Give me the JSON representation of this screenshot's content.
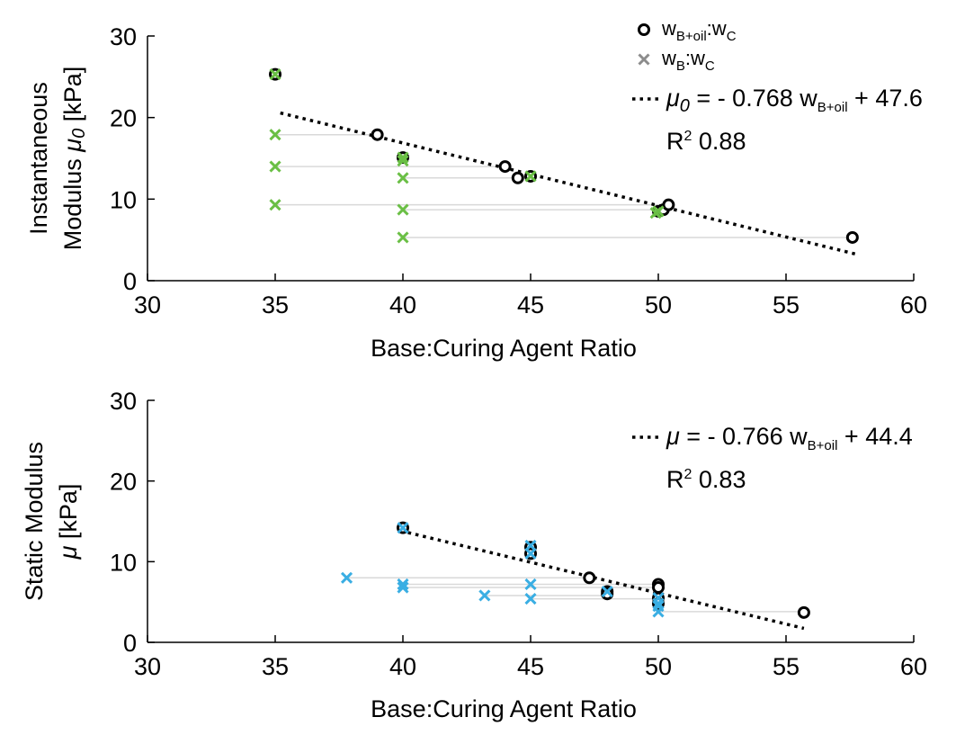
{
  "chart_data": [
    {
      "type": "scatter",
      "panel": "top",
      "xlabel": "Base:Curing Agent Ratio",
      "ylabel_line1": "Instantaneous",
      "ylabel_line2_prefix": "Modulus ",
      "ylabel_symbol": "μ",
      "ylabel_symbol_sub": "0",
      "ylabel_unit": " [kPa]",
      "xlim": [
        30,
        60
      ],
      "ylim": [
        0,
        30
      ],
      "xticks": [
        30,
        35,
        40,
        45,
        50,
        55,
        60
      ],
      "yticks": [
        0,
        10,
        20,
        30
      ],
      "accent_color": "#6abf45",
      "legend": [
        {
          "marker": "circle",
          "label_main": "w",
          "label_sub": "B+oil",
          "label_sep": ":",
          "label_main2": "w",
          "label_sub2": "C",
          "color": "#000000"
        },
        {
          "marker": "x",
          "label_main": "w",
          "label_sub": "B",
          "label_sep": ":",
          "label_main2": "w",
          "label_sub2": "C",
          "color": "#8c8c8c"
        }
      ],
      "fit": {
        "slope": -0.768,
        "intercept": 47.6,
        "x_range": [
          35.2,
          57.7
        ],
        "eq_symbol": "μ",
        "eq_symbol_sub": "0",
        "eq_text": " = - 0.768 ",
        "eq_var": "w",
        "eq_var_sub": "B+oil",
        "eq_const": " + 47.6",
        "r2_label": "R",
        "r2_sup": "2",
        "r2_value": "  0.88"
      },
      "series": [
        {
          "name": "wB+oil:wC",
          "marker": "circle",
          "points": [
            [
              35,
              25.3
            ],
            [
              39,
              17.9
            ],
            [
              40,
              15.1
            ],
            [
              44,
              14.0
            ],
            [
              44.5,
              12.6
            ],
            [
              45,
              12.8
            ],
            [
              50,
              8.5
            ],
            [
              50.2,
              8.7
            ],
            [
              50.4,
              9.3
            ],
            [
              57.6,
              5.3
            ]
          ]
        },
        {
          "name": "wB:wC",
          "marker": "x",
          "points": [
            [
              35,
              25.3
            ],
            [
              35,
              17.9
            ],
            [
              35,
              14.0
            ],
            [
              35,
              9.3
            ],
            [
              40,
              15.1
            ],
            [
              40,
              14.7
            ],
            [
              40,
              12.6
            ],
            [
              40,
              8.7
            ],
            [
              40,
              5.3
            ],
            [
              45,
              12.8
            ],
            [
              49.9,
              8.3
            ],
            [
              50,
              8.5
            ]
          ]
        }
      ],
      "connectors": [
        [
          [
            35,
            17.9
          ],
          [
            39,
            17.9
          ]
        ],
        [
          [
            35,
            14.0
          ],
          [
            44,
            14.0
          ]
        ],
        [
          [
            40,
            12.6
          ],
          [
            44.5,
            12.6
          ]
        ],
        [
          [
            35,
            9.3
          ],
          [
            50.4,
            9.3
          ]
        ],
        [
          [
            40,
            8.7
          ],
          [
            50.2,
            8.7
          ]
        ],
        [
          [
            40,
            5.3
          ],
          [
            57.6,
            5.3
          ]
        ]
      ]
    },
    {
      "type": "scatter",
      "panel": "bottom",
      "xlabel": "Base:Curing Agent Ratio",
      "ylabel_line1": "Static Modulus",
      "ylabel_line2_prefix": "",
      "ylabel_symbol": "μ",
      "ylabel_symbol_sub": "",
      "ylabel_unit": " [kPa]",
      "xlim": [
        30,
        60
      ],
      "ylim": [
        0,
        30
      ],
      "xticks": [
        30,
        35,
        40,
        45,
        50,
        55,
        60
      ],
      "yticks": [
        0,
        10,
        20,
        30
      ],
      "accent_color": "#3aaee3",
      "fit": {
        "slope": -0.766,
        "intercept": 44.4,
        "x_range": [
          40.2,
          55.7
        ],
        "eq_symbol": "μ",
        "eq_symbol_sub": "",
        "eq_text": " = - 0.766 ",
        "eq_var": "w",
        "eq_var_sub": "B+oil",
        "eq_const": " + 44.4",
        "r2_label": "R",
        "r2_sup": "2",
        "r2_value": "  0.83"
      },
      "series": [
        {
          "name": "wB+oil:wC",
          "marker": "circle",
          "points": [
            [
              40,
              14.2
            ],
            [
              45,
              11.8
            ],
            [
              45,
              11.0
            ],
            [
              47.3,
              8.0
            ],
            [
              48,
              6.3
            ],
            [
              48,
              6.0
            ],
            [
              50,
              7.2
            ],
            [
              50,
              6.8
            ],
            [
              50,
              5.5
            ],
            [
              50,
              4.8
            ],
            [
              55.7,
              3.7
            ]
          ]
        },
        {
          "name": "wB:wC",
          "marker": "x",
          "points": [
            [
              40,
              14.2
            ],
            [
              37.8,
              8.0
            ],
            [
              40,
              7.2
            ],
            [
              40,
              6.8
            ],
            [
              43.2,
              5.8
            ],
            [
              45,
              12.0
            ],
            [
              45,
              11.0
            ],
            [
              45,
              7.2
            ],
            [
              45,
              5.4
            ],
            [
              48,
              6.3
            ],
            [
              50,
              5.5
            ],
            [
              50,
              4.8
            ],
            [
              50,
              4.5
            ],
            [
              50,
              3.8
            ]
          ]
        }
      ],
      "connectors": [
        [
          [
            37.8,
            8.0
          ],
          [
            47.3,
            8.0
          ]
        ],
        [
          [
            40,
            7.2
          ],
          [
            50,
            7.2
          ]
        ],
        [
          [
            40,
            6.8
          ],
          [
            50,
            6.8
          ]
        ],
        [
          [
            43.2,
            5.8
          ],
          [
            48,
            5.8
          ]
        ],
        [
          [
            45,
            5.4
          ],
          [
            50,
            5.4
          ]
        ],
        [
          [
            50,
            3.8
          ],
          [
            55.7,
            3.8
          ]
        ]
      ]
    }
  ]
}
